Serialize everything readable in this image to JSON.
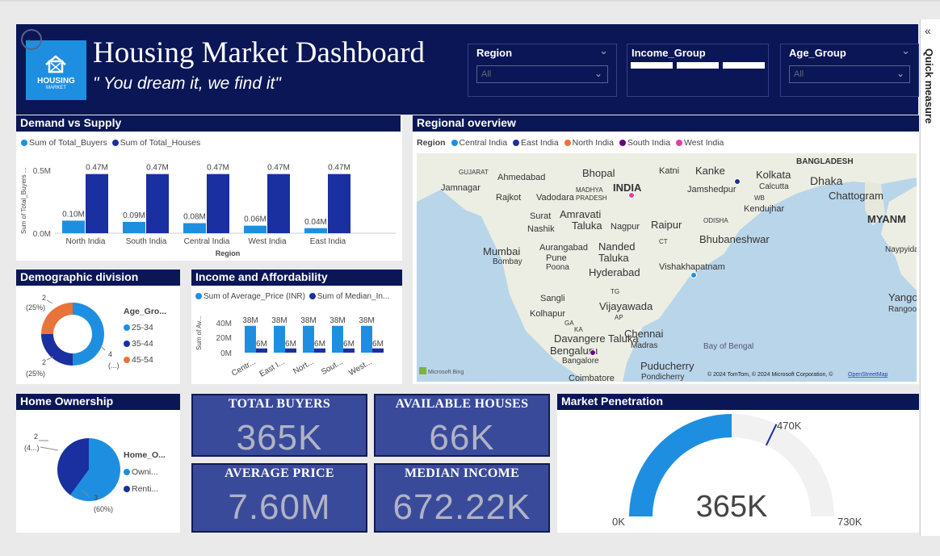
{
  "header": {
    "title": "Housing Market Dashboard",
    "tagline": "\" You dream it, we find it\"",
    "logo_text": "HOUSING",
    "logo_sub": "MARKET"
  },
  "slicers": {
    "region": {
      "label": "Region",
      "value": "All"
    },
    "income_group": {
      "label": "Income_Group"
    },
    "age_group": {
      "label": "Age_Group",
      "value": "All"
    }
  },
  "demand_supply": {
    "title": "Demand vs Supply",
    "legend": [
      "Sum of Total_Buyers",
      "Sum of Total_Houses"
    ],
    "ylabel": "Sum of Total_Buyers ...",
    "xlabel": "Region",
    "yticks": [
      "0.5M",
      "0.0M"
    ]
  },
  "regional": {
    "title": "Regional overview",
    "legend_label": "Region",
    "legend": [
      "Central India",
      "East India",
      "North India",
      "South India",
      "West India"
    ],
    "places": {
      "bangladesh": "BANGLADESH",
      "gujarat": "GUJARAT",
      "ahmedabad": "Ahmedabad",
      "bhopal": "Bhopal",
      "katni": "Katni",
      "kanke": "Kanke",
      "kolkata": "Kolkata",
      "calcutta": "Calcutta",
      "dhaka": "Dhaka",
      "jamnagar": "Jamnagar",
      "rajkot": "Rajkot",
      "vadodara": "Vadodara",
      "madhya": "MADHYA",
      "pradesh": "PRADESH",
      "india": "INDIA",
      "jamshedpur": "Jamshedpur",
      "wb": "WB",
      "chattogram": "Chattogram",
      "kendujhar": "Kendujhar",
      "surat": "Surat",
      "amravati": "Amravati",
      "nashik": "Nashik",
      "taluka1": "Taluka",
      "nagpur": "Nagpur",
      "raipur": "Raipur",
      "odisha": "ODISHA",
      "myanmar": "MYANM",
      "aurangabad": "Aurangabad",
      "nanded": "Nanded",
      "ct": "CT",
      "bhubaneshwar": "Bhubaneshwar",
      "mumbai": "Mumbai",
      "bombay": "Bombay",
      "pune": "Pune",
      "poona": "Poona",
      "taluka2": "Taluka",
      "vishakhapatnam": "Vishakhapatnam",
      "naypyidaw": "Naypyidaw",
      "hyderabad": "Hyderabad",
      "tg": "TG",
      "sangli": "Sangli",
      "vijayawada": "Vijayawada",
      "yangon": "Yangon",
      "rangoon": "Rangoon",
      "ga": "GA",
      "kolhapur": "Kolhapur",
      "ka": "KA",
      "ap": "AP",
      "chennai": "Chennai",
      "madras": "Madras",
      "davangere": "Davangere Taluka",
      "bengaluru": "Bengaluru",
      "bangalore": "Bangalore",
      "bay": "Bay of Bengal",
      "puducherry": "Puducherry",
      "pondicherry": "Pondicherry",
      "coimbatore": "Coimbatore",
      "bing": "Microsoft Bing",
      "copyright": "© 2024 TomTom, © 2024 Microsoft Corporation, ©",
      "osm": "OpenStreetMap"
    }
  },
  "demographic": {
    "title": "Demographic division",
    "legend_title": "Age_Gro...",
    "legend": [
      "25-34",
      "35-44",
      "45-54"
    ],
    "labels": {
      "top": "2",
      "top_pct": "(25%)",
      "right": "4",
      "right_pct": "(...)",
      "bottom": "2",
      "bottom_pct": "(25%)"
    }
  },
  "income": {
    "title": "Income and Affordability",
    "legend": [
      "Sum of Average_Price (INR)",
      "Sum of Median_In..."
    ],
    "ylabel": "Sum of Av...",
    "yticks": [
      "40M",
      "20M",
      "0M"
    ]
  },
  "ownership": {
    "title": "Home Ownership",
    "legend_title": "Home_O...",
    "legend": [
      "Owni...",
      "Renti..."
    ],
    "labels": {
      "a": "2",
      "a_pct": "(4...)",
      "b": "3",
      "b_pct": "(60%)"
    }
  },
  "kpis": {
    "total_buyers": {
      "label": "TOTAL BUYERS",
      "value": "365K"
    },
    "available_houses": {
      "label": "AVAILABLE HOUSES",
      "value": "66K"
    },
    "average_price": {
      "label": "AVERAGE PRICE",
      "value": "7.60M"
    },
    "median_income": {
      "label": "MEDIAN INCOME",
      "value": "672.22K"
    }
  },
  "penetration": {
    "title": "Market Penetration",
    "value": "365K",
    "min": "0K",
    "max": "730K",
    "target": "470K",
    "fraction": 0.5
  },
  "quick_measure": {
    "label": "Quick measure"
  },
  "colors": {
    "navy": "#0a1655",
    "light": "#1e8fe0",
    "dark": "#1a2fa0",
    "orange": "#e8743b",
    "purple": "#6a0080",
    "pink": "#e040a0"
  },
  "chart_data": [
    {
      "type": "bar",
      "title": "Demand vs Supply",
      "categories": [
        "North India",
        "South India",
        "Central India",
        "West India",
        "East India"
      ],
      "series": [
        {
          "name": "Sum of Total_Buyers",
          "values": [
            0.1,
            0.09,
            0.08,
            0.06,
            0.04
          ],
          "labels": [
            "0.10M",
            "0.09M",
            "0.08M",
            "0.06M",
            "0.04M"
          ]
        },
        {
          "name": "Sum of Total_Houses",
          "values": [
            0.47,
            0.47,
            0.47,
            0.47,
            0.47
          ],
          "labels": [
            "0.47M",
            "0.47M",
            "0.47M",
            "0.47M",
            "0.47M"
          ]
        }
      ],
      "ylabel": "Sum of Total_Buyers ...",
      "xlabel": "Region",
      "ylim": [
        0,
        0.5
      ]
    },
    {
      "type": "bar",
      "title": "Income and Affordability",
      "categories": [
        "Centr...",
        "East I...",
        "Nort...",
        "Sout...",
        "West..."
      ],
      "series": [
        {
          "name": "Sum of Average_Price (INR)",
          "values": [
            38,
            38,
            38,
            38,
            38
          ],
          "labels": [
            "38M",
            "38M",
            "38M",
            "38M",
            "38M"
          ]
        },
        {
          "name": "Sum of Median_In...",
          "values": [
            6,
            6,
            6,
            6,
            6
          ],
          "labels": [
            "6M",
            "6M",
            "6M",
            "6M",
            "6M"
          ]
        }
      ],
      "ylim": [
        0,
        40
      ]
    },
    {
      "type": "pie",
      "title": "Demographic division",
      "categories": [
        "25-34",
        "35-44",
        "45-54"
      ],
      "values": [
        4,
        2,
        2
      ]
    },
    {
      "type": "pie",
      "title": "Home Ownership",
      "categories": [
        "Owni...",
        "Renti..."
      ],
      "values": [
        3,
        2
      ]
    }
  ]
}
